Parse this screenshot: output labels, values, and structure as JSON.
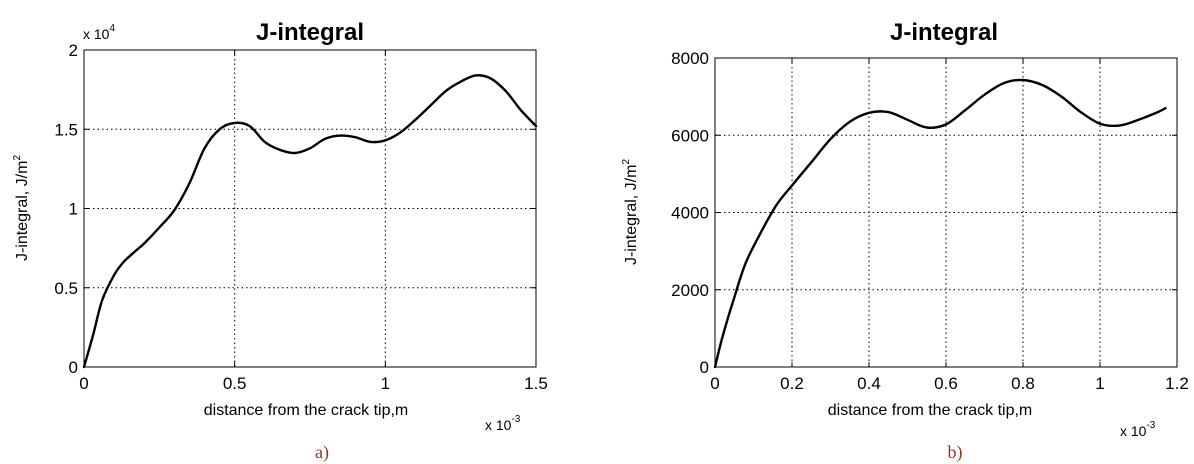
{
  "chart_data": [
    {
      "type": "line",
      "title": "J-integral",
      "xlabel": "distance from the crack tip,m",
      "ylabel": "J-integral, J/m",
      "ylabel_sup": "2",
      "x_multiplier": "x 10",
      "x_multiplier_exp": "-3",
      "y_multiplier": "x 10",
      "y_multiplier_exp": "4",
      "caption": "a)",
      "xlim": [
        0,
        1.5
      ],
      "ylim": [
        0,
        2
      ],
      "xticks": [
        "0",
        "0.5",
        "1",
        "1.5"
      ],
      "yticks": [
        "0",
        "0.5",
        "1",
        "1.5",
        "2"
      ],
      "grid": true,
      "series": [
        {
          "x": [
            0,
            0.03,
            0.06,
            0.1,
            0.13,
            0.17,
            0.2,
            0.25,
            0.3,
            0.35,
            0.4,
            0.45,
            0.5,
            0.55,
            0.6,
            0.65,
            0.7,
            0.75,
            0.8,
            0.85,
            0.9,
            0.95,
            1.0,
            1.05,
            1.1,
            1.15,
            1.2,
            1.25,
            1.3,
            1.35,
            1.4,
            1.45,
            1.5
          ],
          "y": [
            0,
            0.2,
            0.42,
            0.58,
            0.66,
            0.73,
            0.78,
            0.88,
            0.99,
            1.16,
            1.38,
            1.5,
            1.54,
            1.52,
            1.42,
            1.37,
            1.35,
            1.38,
            1.44,
            1.46,
            1.45,
            1.42,
            1.43,
            1.48,
            1.56,
            1.65,
            1.74,
            1.8,
            1.84,
            1.82,
            1.74,
            1.62,
            1.52
          ]
        }
      ]
    },
    {
      "type": "line",
      "title": "J-integral",
      "xlabel": "distance from the crack tip,m",
      "ylabel": "J-integral, J/m",
      "ylabel_sup": "2",
      "x_multiplier": "x 10",
      "x_multiplier_exp": "-3",
      "caption": "b)",
      "xlim": [
        0,
        1.2
      ],
      "ylim": [
        0,
        8000
      ],
      "xticks": [
        "0",
        "0.2",
        "0.4",
        "0.6",
        "0.8",
        "1",
        "1.2"
      ],
      "yticks": [
        "0",
        "2000",
        "4000",
        "6000",
        "8000"
      ],
      "grid": true,
      "series": [
        {
          "x": [
            0,
            0.02,
            0.05,
            0.08,
            0.12,
            0.16,
            0.2,
            0.25,
            0.3,
            0.35,
            0.4,
            0.45,
            0.5,
            0.55,
            0.6,
            0.65,
            0.7,
            0.75,
            0.8,
            0.85,
            0.9,
            0.95,
            1.0,
            1.05,
            1.1,
            1.15,
            1.17
          ],
          "y": [
            0,
            800,
            1800,
            2700,
            3500,
            4200,
            4700,
            5300,
            5900,
            6350,
            6580,
            6600,
            6400,
            6200,
            6280,
            6650,
            7050,
            7350,
            7430,
            7300,
            7000,
            6600,
            6300,
            6250,
            6400,
            6600,
            6700
          ]
        }
      ]
    }
  ]
}
